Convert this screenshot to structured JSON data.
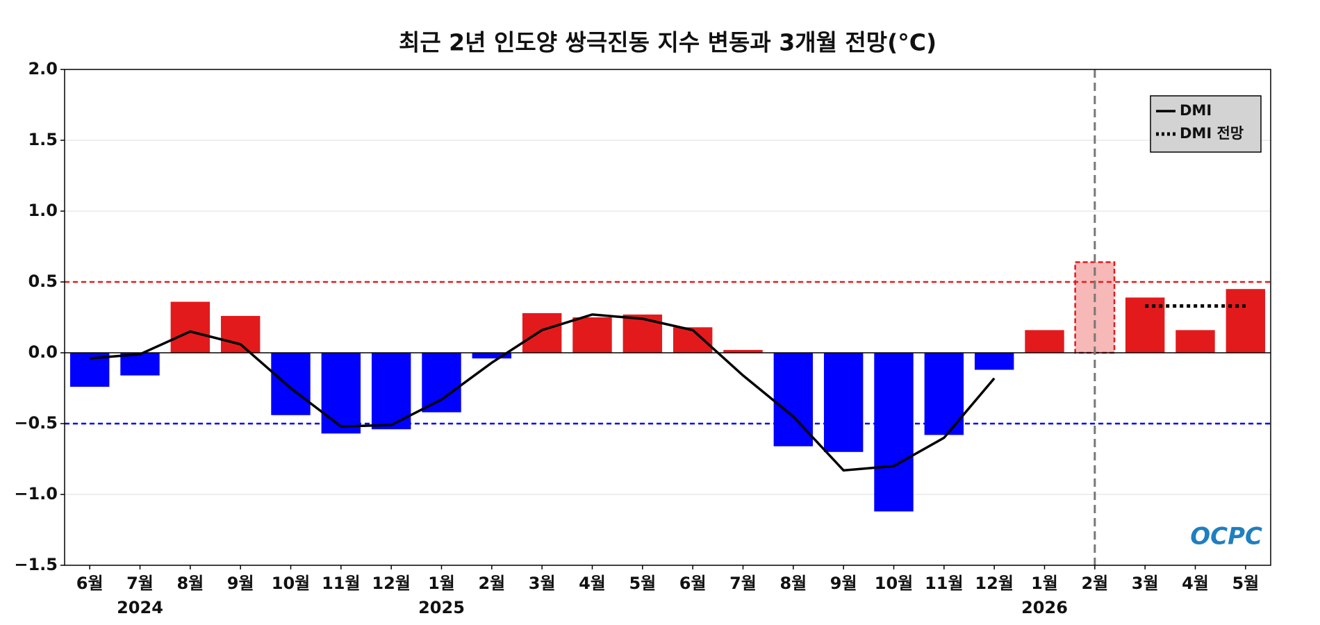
{
  "chart_data": {
    "type": "bar",
    "title": "최근 2년 인도양 쌍극진동 지수 변동과 3개월 전망(°C)",
    "categories": [
      "6월",
      "7월",
      "8월",
      "9월",
      "10월",
      "11월",
      "12월",
      "1월",
      "2월",
      "3월",
      "4월",
      "5월",
      "6월",
      "7월",
      "8월",
      "9월",
      "10월",
      "11월",
      "12월",
      "1월",
      "2월",
      "3월",
      "4월",
      "5월"
    ],
    "year_labels": [
      null,
      "2024",
      null,
      null,
      null,
      null,
      null,
      "2025",
      null,
      null,
      null,
      null,
      null,
      null,
      null,
      null,
      null,
      null,
      null,
      "2026",
      null,
      null,
      null,
      null
    ],
    "values": [
      -0.24,
      -0.16,
      0.36,
      0.26,
      -0.44,
      -0.57,
      -0.54,
      -0.42,
      -0.04,
      0.28,
      0.25,
      0.27,
      0.18,
      0.02,
      -0.66,
      -0.7,
      -1.12,
      -0.58,
      -0.12,
      0.16,
      0.64,
      0.39,
      0.16,
      0.45
    ],
    "colors": [
      "#0000ff",
      "#0000ff",
      "#e31a1c",
      "#e31a1c",
      "#0000ff",
      "#0000ff",
      "#0000ff",
      "#0000ff",
      "#0000ff",
      "#e31a1c",
      "#e31a1c",
      "#e31a1c",
      "#e31a1c",
      "#e31a1c",
      "#0000ff",
      "#0000ff",
      "#0000ff",
      "#0000ff",
      "#0000ff",
      "#e31a1c",
      "#f7b8b8",
      "#e31a1c",
      "#e31a1c",
      "#e31a1c"
    ],
    "highlight_index": 20,
    "series": [
      {
        "name": "DMI",
        "color": "#000000",
        "style": "solid",
        "values": [
          -0.04,
          -0.01,
          0.15,
          0.06,
          -0.25,
          -0.52,
          -0.51,
          -0.33,
          -0.07,
          0.16,
          0.27,
          0.24,
          0.16,
          -0.16,
          -0.45,
          -0.83,
          -0.8,
          -0.6,
          -0.18,
          null,
          null,
          null,
          null,
          null
        ]
      },
      {
        "name": "DMI 전망",
        "color": "#000000",
        "style": "dotted",
        "values": [
          null,
          null,
          null,
          null,
          null,
          null,
          null,
          null,
          null,
          null,
          null,
          null,
          null,
          null,
          null,
          null,
          null,
          null,
          null,
          null,
          null,
          0.33,
          0.33,
          0.33
        ]
      }
    ],
    "hlines": [
      {
        "value": 0.5,
        "color": "#e31a1c"
      },
      {
        "value": -0.5,
        "color": "#0000ff"
      }
    ],
    "ylim": [
      -1.5,
      2.0
    ],
    "yticks": [
      {
        "value": -1.5,
        "label": "−1.5"
      },
      {
        "value": -1,
        "label": "−1.0"
      },
      {
        "value": -0.5,
        "label": "−0.5"
      },
      {
        "value": 0,
        "label": "0.0"
      },
      0.5,
      {
        "value": 1,
        "label": "1.0"
      },
      1.5,
      {
        "value": 2,
        "label": "2.0"
      }
    ],
    "grid": true,
    "legend": "upper right",
    "logo": "OCPC"
  }
}
